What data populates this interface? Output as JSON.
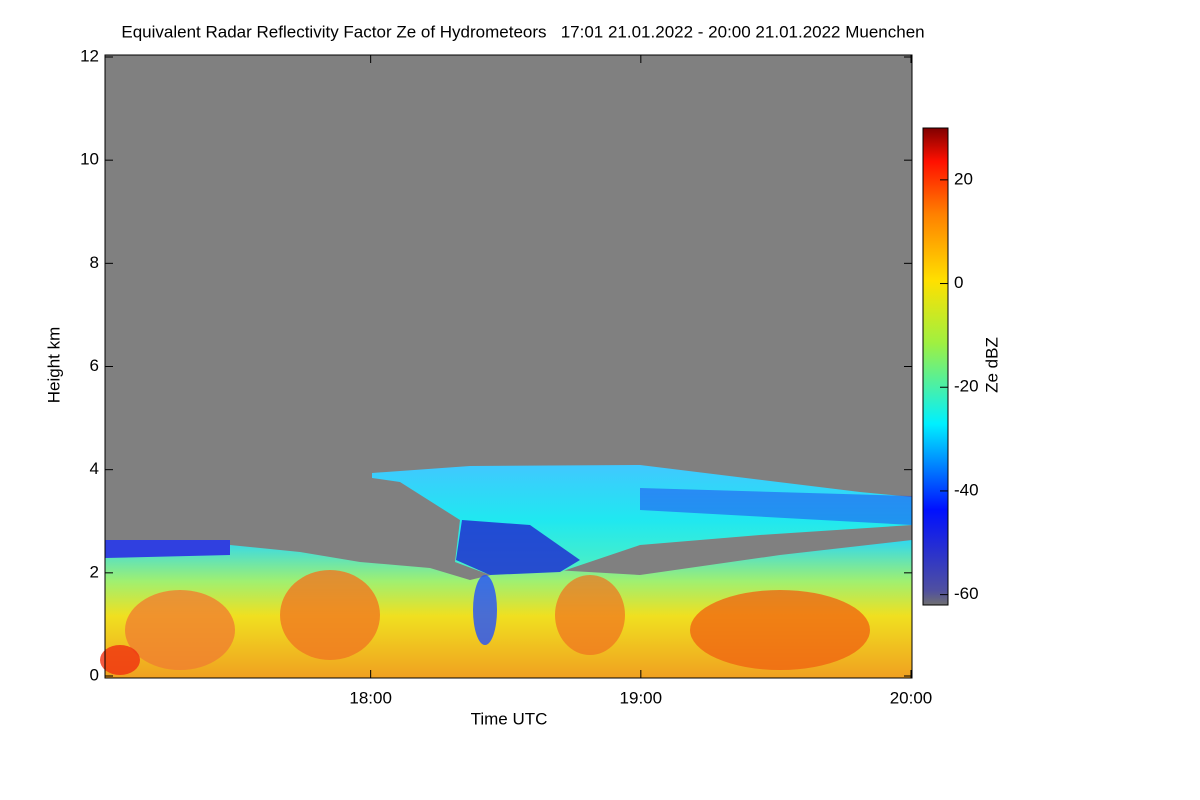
{
  "chart_data": {
    "type": "heatmap",
    "title": "Equivalent Radar Reflectivity Factor Ze of Hydrometeors   17:01 21.01.2022 - 20:00 21.01.2022 Muenchen",
    "x_label": "Time UTC",
    "y_label": "Height km",
    "xlim": [
      17.0167,
      20.0
    ],
    "xticks": [
      {
        "value": 18,
        "label": "18:00"
      },
      {
        "value": 19,
        "label": "19:00"
      },
      {
        "value": 20,
        "label": "20:00"
      }
    ],
    "ylim": [
      0,
      12
    ],
    "yticks": [
      0,
      2,
      4,
      6,
      8,
      10,
      12
    ],
    "colorbar": {
      "label": "Ze dBZ",
      "lim": [
        -62,
        30
      ],
      "ticks": [
        -60,
        -40,
        -20,
        0,
        20
      ]
    }
  }
}
